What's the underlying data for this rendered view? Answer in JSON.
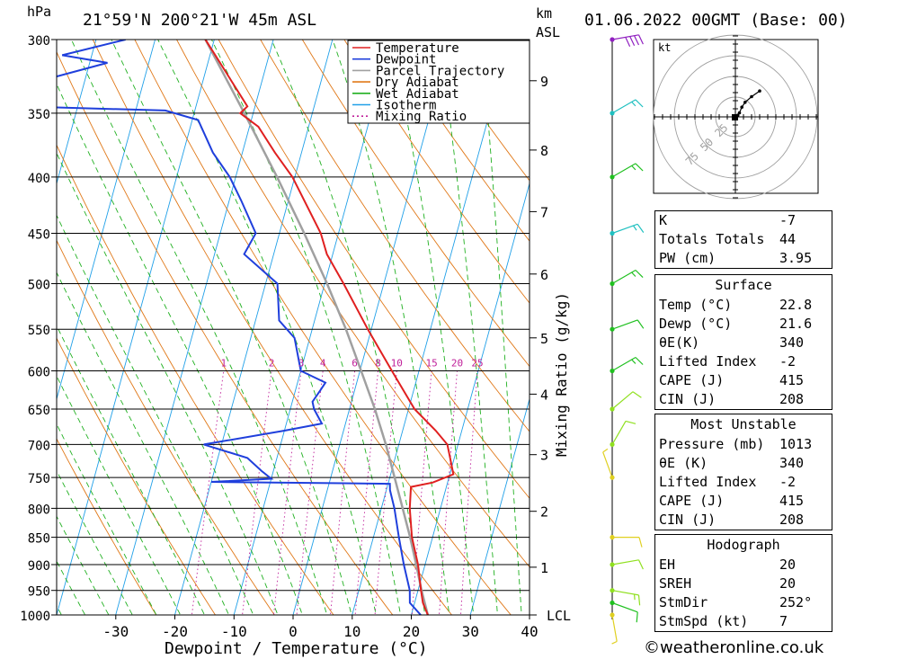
{
  "header": {
    "location": "21°59'N  200°21'W  45m  ASL",
    "date": "01.06.2022  00GMT  (Base: 00)",
    "pressure_unit": "hPa",
    "height_unit_1": "km",
    "height_unit_2": "ASL"
  },
  "chart_data": {
    "type": "skew-t log-p",
    "xlabel": "Dewpoint / Temperature (°C)",
    "secondary_axis_label": "Mixing Ratio (g/kg)",
    "x_ticks": [
      -30,
      -20,
      -10,
      0,
      10,
      20,
      30,
      40
    ],
    "x_range": [
      -40,
      40
    ],
    "pressure_levels": [
      300,
      350,
      400,
      450,
      500,
      550,
      600,
      650,
      700,
      750,
      800,
      850,
      900,
      950,
      1000
    ],
    "height_km_ticks": [
      {
        "label": "9",
        "p": 327
      },
      {
        "label": "8",
        "p": 378
      },
      {
        "label": "7",
        "p": 430
      },
      {
        "label": "6",
        "p": 490
      },
      {
        "label": "5",
        "p": 560
      },
      {
        "label": "4",
        "p": 630
      },
      {
        "label": "3",
        "p": 715
      },
      {
        "label": "2",
        "p": 805
      },
      {
        "label": "1",
        "p": 905
      },
      {
        "label": "LCL",
        "p": 1000
      }
    ],
    "mixing_ratio_labels": [
      "1",
      "2",
      "3",
      "4",
      "6",
      "8",
      "10",
      "15",
      "20",
      "25"
    ],
    "mixing_ratio_values": [
      1,
      2,
      3,
      4,
      6,
      8,
      10,
      15,
      20,
      25
    ],
    "legend": [
      {
        "name": "Temperature",
        "color": "#e02020"
      },
      {
        "name": "Dewpoint",
        "color": "#1f3fdc"
      },
      {
        "name": "Parcel Trajectory",
        "color": "#a0a0a0"
      },
      {
        "name": "Dry Adiabat",
        "color": "#e07818"
      },
      {
        "name": "Wet Adiabat",
        "color": "#20b020"
      },
      {
        "name": "Isotherm",
        "color": "#20a0e8"
      },
      {
        "name": "Mixing Ratio",
        "color": "#c0209a"
      }
    ],
    "temperature": [
      {
        "p": 1000,
        "t": 22.8
      },
      {
        "p": 975,
        "t": 21.4
      },
      {
        "p": 950,
        "t": 20.5
      },
      {
        "p": 900,
        "t": 18.8
      },
      {
        "p": 850,
        "t": 16.5
      },
      {
        "p": 800,
        "t": 14.8
      },
      {
        "p": 765,
        "t": 14.0
      },
      {
        "p": 758,
        "t": 17.5
      },
      {
        "p": 745,
        "t": 20.6
      },
      {
        "p": 720,
        "t": 19.3
      },
      {
        "p": 700,
        "t": 18.2
      },
      {
        "p": 680,
        "t": 15.6
      },
      {
        "p": 650,
        "t": 11.0
      },
      {
        "p": 600,
        "t": 5.4
      },
      {
        "p": 550,
        "t": -0.6
      },
      {
        "p": 500,
        "t": -6.8
      },
      {
        "p": 470,
        "t": -11.0
      },
      {
        "p": 450,
        "t": -13.0
      },
      {
        "p": 400,
        "t": -20.4
      },
      {
        "p": 380,
        "t": -24.5
      },
      {
        "p": 360,
        "t": -28.5
      },
      {
        "p": 350,
        "t": -32.2
      },
      {
        "p": 345,
        "t": -31.3
      },
      {
        "p": 300,
        "t": -41.5
      }
    ],
    "dewpoint": [
      {
        "p": 1000,
        "t": 21.6
      },
      {
        "p": 975,
        "t": 19.2
      },
      {
        "p": 950,
        "t": 18.6
      },
      {
        "p": 900,
        "t": 16.4
      },
      {
        "p": 850,
        "t": 14.3
      },
      {
        "p": 800,
        "t": 12.2
      },
      {
        "p": 770,
        "t": 10.6
      },
      {
        "p": 760,
        "t": 10.3
      },
      {
        "p": 757,
        "t": -20.0
      },
      {
        "p": 752,
        "t": -10.0
      },
      {
        "p": 740,
        "t": -12.0
      },
      {
        "p": 720,
        "t": -15.0
      },
      {
        "p": 700,
        "t": -23.0
      },
      {
        "p": 680,
        "t": -10.0
      },
      {
        "p": 670,
        "t": -4.0
      },
      {
        "p": 650,
        "t": -6.0
      },
      {
        "p": 640,
        "t": -6.6
      },
      {
        "p": 625,
        "t": -5.8
      },
      {
        "p": 615,
        "t": -5.3
      },
      {
        "p": 600,
        "t": -10.0
      },
      {
        "p": 560,
        "t": -12.6
      },
      {
        "p": 540,
        "t": -16.0
      },
      {
        "p": 500,
        "t": -18.0
      },
      {
        "p": 470,
        "t": -25.0
      },
      {
        "p": 450,
        "t": -24.0
      },
      {
        "p": 420,
        "t": -28.0
      },
      {
        "p": 400,
        "t": -31.0
      },
      {
        "p": 380,
        "t": -35.0
      },
      {
        "p": 355,
        "t": -39.0
      },
      {
        "p": 348,
        "t": -45.0
      },
      {
        "p": 345,
        "t": -70.0
      },
      {
        "p": 330,
        "t": -70.0
      },
      {
        "p": 315,
        "t": -57.0
      },
      {
        "p": 310,
        "t": -65.0
      },
      {
        "p": 300,
        "t": -55.0
      }
    ],
    "parcel": [
      {
        "p": 1000,
        "t": 22.8
      },
      {
        "p": 950,
        "t": 20.6
      },
      {
        "p": 900,
        "t": 18.5
      },
      {
        "p": 850,
        "t": 16.2
      },
      {
        "p": 800,
        "t": 13.6
      },
      {
        "p": 750,
        "t": 10.8
      },
      {
        "p": 700,
        "t": 7.8
      },
      {
        "p": 650,
        "t": 4.3
      },
      {
        "p": 600,
        "t": 0.2
      },
      {
        "p": 550,
        "t": -4.3
      },
      {
        "p": 500,
        "t": -9.6
      },
      {
        "p": 450,
        "t": -15.8
      },
      {
        "p": 400,
        "t": -23.0
      },
      {
        "p": 350,
        "t": -31.5
      },
      {
        "p": 300,
        "t": -41.5
      }
    ],
    "wind_barbs": [
      {
        "p": 1000,
        "dir": 170,
        "spd": 5,
        "color": "#e0d020"
      },
      {
        "p": 975,
        "dir": 110,
        "spd": 10,
        "color": "#20c020"
      },
      {
        "p": 950,
        "dir": 100,
        "spd": 15,
        "color": "#90e020"
      },
      {
        "p": 900,
        "dir": 80,
        "spd": 10,
        "color": "#90e020"
      },
      {
        "p": 850,
        "dir": 90,
        "spd": 10,
        "color": "#e0d020"
      },
      {
        "p": 750,
        "dir": 340,
        "spd": 5,
        "color": "#e0d020"
      },
      {
        "p": 700,
        "dir": 30,
        "spd": 10,
        "color": "#90e020"
      },
      {
        "p": 650,
        "dir": 50,
        "spd": 10,
        "color": "#90e020"
      },
      {
        "p": 600,
        "dir": 60,
        "spd": 15,
        "color": "#20c020"
      },
      {
        "p": 550,
        "dir": 70,
        "spd": 10,
        "color": "#20c020"
      },
      {
        "p": 500,
        "dir": 60,
        "spd": 15,
        "color": "#20c020"
      },
      {
        "p": 450,
        "dir": 70,
        "spd": 15,
        "color": "#20c0c0"
      },
      {
        "p": 400,
        "dir": 60,
        "spd": 15,
        "color": "#20c020"
      },
      {
        "p": 350,
        "dir": 60,
        "spd": 15,
        "color": "#20c0c0"
      },
      {
        "p": 300,
        "dir": 80,
        "spd": 40,
        "color": "#9020c0"
      }
    ],
    "hodograph": {
      "unit": "kt",
      "ring_labels": [
        "25",
        "50",
        "75"
      ],
      "points": [
        [
          0,
          0
        ],
        [
          3,
          2
        ],
        [
          5,
          5
        ],
        [
          8,
          12
        ],
        [
          12,
          18
        ],
        [
          20,
          25
        ],
        [
          30,
          32
        ]
      ]
    }
  },
  "indices": {
    "rows": [
      {
        "label": "K",
        "value": "-7"
      },
      {
        "label": "Totals Totals",
        "value": "44"
      },
      {
        "label": "PW (cm)",
        "value": "3.95"
      }
    ]
  },
  "surface": {
    "title": "Surface",
    "rows": [
      {
        "label": "Temp (°C)",
        "value": "22.8"
      },
      {
        "label": "Dewp (°C)",
        "value": "21.6"
      },
      {
        "label": "θE(K)",
        "value": "340"
      },
      {
        "label": "Lifted Index",
        "value": "-2"
      },
      {
        "label": "CAPE (J)",
        "value": "415"
      },
      {
        "label": "CIN (J)",
        "value": "208"
      }
    ]
  },
  "most_unstable": {
    "title": "Most Unstable",
    "rows": [
      {
        "label": "Pressure (mb)",
        "value": "1013"
      },
      {
        "label": "θE (K)",
        "value": "340"
      },
      {
        "label": "Lifted Index",
        "value": "-2"
      },
      {
        "label": "CAPE (J)",
        "value": "415"
      },
      {
        "label": "CIN (J)",
        "value": "208"
      }
    ]
  },
  "hodograph_table": {
    "title": "Hodograph",
    "rows": [
      {
        "label": "EH",
        "value": "20"
      },
      {
        "label": "SREH",
        "value": "20"
      },
      {
        "label": "StmDir",
        "value": "252°"
      },
      {
        "label": "StmSpd (kt)",
        "value": "7"
      }
    ]
  },
  "footer": {
    "credit": "©weatheronline.co.uk"
  }
}
